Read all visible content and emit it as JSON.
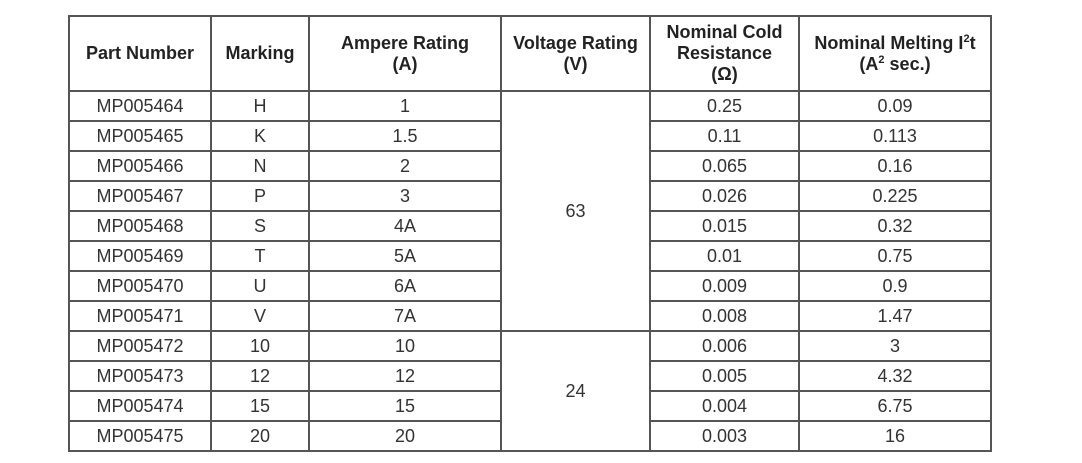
{
  "headers": {
    "part_number": "Part Number",
    "marking": "Marking",
    "ampere": {
      "line1": "Ampere Rating",
      "line2": "(A)"
    },
    "voltage": {
      "line1": "Voltage Rating",
      "line2": "(V)"
    },
    "resistance": {
      "line1": "Nominal Cold",
      "line2": "Resistance",
      "line3": "(Ω)"
    },
    "melting": {
      "line1_pre": "Nominal Melting I",
      "line1_sup": "2",
      "line1_post": "t",
      "line2_pre": "(A",
      "line2_sup": "2",
      "line2_post": " sec.)"
    }
  },
  "voltage_groups": [
    "63",
    "24"
  ],
  "rows": [
    {
      "part": "MP005464",
      "marking": "H",
      "ampere": "1",
      "resistance": "0.25",
      "melting": "0.09"
    },
    {
      "part": "MP005465",
      "marking": "K",
      "ampere": "1.5",
      "resistance": "0.11",
      "melting": "0.113"
    },
    {
      "part": "MP005466",
      "marking": "N",
      "ampere": "2",
      "resistance": "0.065",
      "melting": "0.16"
    },
    {
      "part": "MP005467",
      "marking": "P",
      "ampere": "3",
      "resistance": "0.026",
      "melting": "0.225"
    },
    {
      "part": "MP005468",
      "marking": "S",
      "ampere": "4A",
      "resistance": "0.015",
      "melting": "0.32"
    },
    {
      "part": "MP005469",
      "marking": "T",
      "ampere": "5A",
      "resistance": "0.01",
      "melting": "0.75"
    },
    {
      "part": "MP005470",
      "marking": "U",
      "ampere": "6A",
      "resistance": "0.009",
      "melting": "0.9"
    },
    {
      "part": "MP005471",
      "marking": "V",
      "ampere": "7A",
      "resistance": "0.008",
      "melting": "1.47"
    },
    {
      "part": "MP005472",
      "marking": "10",
      "ampere": "10",
      "resistance": "0.006",
      "melting": "3"
    },
    {
      "part": "MP005473",
      "marking": "12",
      "ampere": "12",
      "resistance": "0.005",
      "melting": "4.32"
    },
    {
      "part": "MP005474",
      "marking": "15",
      "ampere": "15",
      "resistance": "0.004",
      "melting": "6.75"
    },
    {
      "part": "MP005475",
      "marking": "20",
      "ampere": "20",
      "resistance": "0.003",
      "melting": "16"
    }
  ]
}
